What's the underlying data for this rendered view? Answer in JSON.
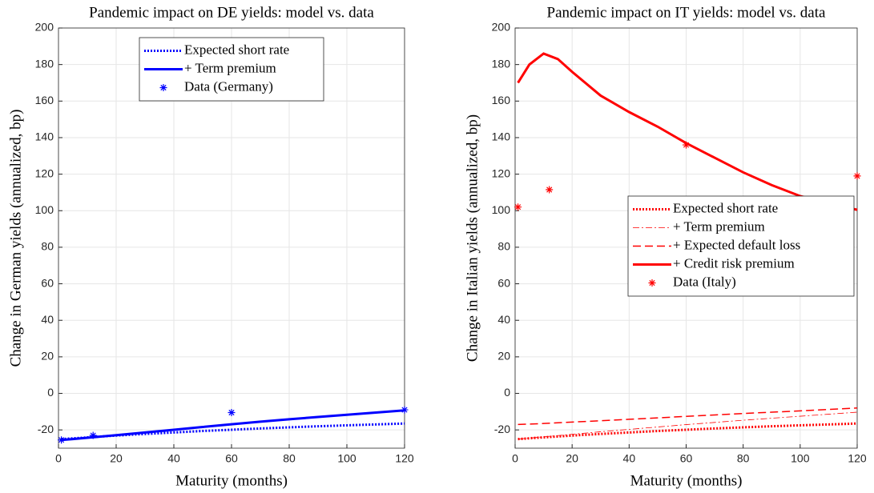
{
  "chart_data": [
    {
      "type": "line",
      "title": "Pandemic impact on DE yields: model vs. data",
      "xlabel": "Maturity (months)",
      "ylabel": "Change in German yields (annualized, bp)",
      "xlim": [
        0,
        120
      ],
      "xticks": [
        0,
        20,
        40,
        60,
        80,
        100,
        120
      ],
      "ylim": [
        -30,
        200
      ],
      "yticks": [
        -20,
        0,
        20,
        40,
        60,
        80,
        100,
        120,
        140,
        160,
        180,
        200
      ],
      "grid": true,
      "legend": "upper center",
      "x": [
        1,
        5,
        10,
        15,
        20,
        30,
        40,
        50,
        60,
        70,
        80,
        90,
        100,
        110,
        120
      ],
      "series": [
        {
          "name": "Expected short rate",
          "color": "#0000ff",
          "style": "dotted",
          "values": [
            -25,
            -24.6,
            -24.1,
            -23.6,
            -23.1,
            -22.2,
            -21.4,
            -20.6,
            -19.9,
            -19.2,
            -18.6,
            -18,
            -17.5,
            -17,
            -16.5
          ]
        },
        {
          "name": "+ Term premium",
          "color": "#0000ff",
          "style": "solid",
          "values": [
            -25.5,
            -25,
            -24.3,
            -23.6,
            -22.9,
            -21.4,
            -19.9,
            -18.4,
            -16.9,
            -15.5,
            -14.2,
            -12.9,
            -11.7,
            -10.5,
            -9.3
          ]
        },
        {
          "name": "Data (Germany)",
          "color": "#0000ff",
          "style": "asterisk",
          "x": [
            1,
            12,
            60,
            120
          ],
          "values": [
            -25.5,
            -23,
            -10.5,
            -9
          ]
        }
      ]
    },
    {
      "type": "line",
      "title": "Pandemic impact on IT yields: model vs. data",
      "xlabel": "Maturity (months)",
      "ylabel": "Change in Italian yields (annualized, bp)",
      "xlim": [
        0,
        120
      ],
      "xticks": [
        0,
        20,
        40,
        60,
        80,
        100,
        120
      ],
      "ylim": [
        -30,
        200
      ],
      "yticks": [
        -20,
        0,
        20,
        40,
        60,
        80,
        100,
        120,
        140,
        160,
        180,
        200
      ],
      "grid": true,
      "legend": "center right",
      "x": [
        1,
        5,
        10,
        15,
        20,
        30,
        40,
        50,
        60,
        70,
        80,
        90,
        100,
        110,
        120
      ],
      "series": [
        {
          "name": "Expected short rate",
          "color": "#ff0000",
          "style": "dotted",
          "values": [
            -25,
            -24.6,
            -24.1,
            -23.6,
            -23.1,
            -22.2,
            -21.4,
            -20.6,
            -19.9,
            -19.2,
            -18.6,
            -18,
            -17.5,
            -17,
            -16.5
          ]
        },
        {
          "name": "+ Term premium",
          "color": "#ff0000",
          "style": "dashdot",
          "values": [
            -25,
            -24.5,
            -23.8,
            -23.1,
            -22.4,
            -21,
            -19.7,
            -18.4,
            -17.1,
            -15.9,
            -14.7,
            -13.6,
            -12.5,
            -11.4,
            -10.3
          ]
        },
        {
          "name": "+ Expected default loss",
          "color": "#ff0000",
          "style": "dashed",
          "values": [
            -17,
            -16.8,
            -16.5,
            -16.1,
            -15.7,
            -15,
            -14.2,
            -13.4,
            -12.6,
            -11.8,
            -11,
            -10.3,
            -9.6,
            -8.8,
            -8
          ]
        },
        {
          "name": "+ Credit risk premium",
          "color": "#ff0000",
          "style": "solid",
          "values": [
            170,
            180,
            186,
            183,
            176,
            163,
            154,
            146,
            137,
            129,
            121,
            114,
            108,
            104,
            100.5
          ]
        },
        {
          "name": "Data (Italy)",
          "color": "#ff0000",
          "style": "asterisk",
          "x": [
            1,
            12,
            60,
            120
          ],
          "values": [
            102,
            111.5,
            136,
            119
          ]
        }
      ]
    }
  ]
}
